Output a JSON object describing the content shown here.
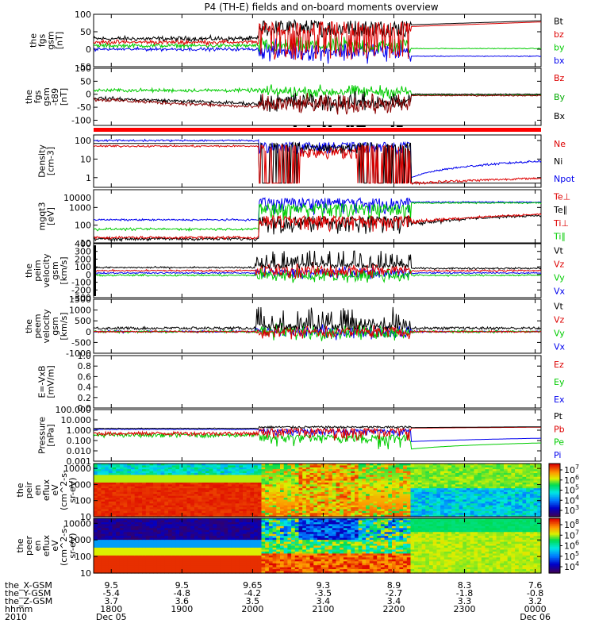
{
  "title": "P4 (TH-E) fields and on-board moments overview",
  "chart_data": [
    {
      "type": "line",
      "panel": "fgs_gsm",
      "ylabel": [
        "the",
        "fgs",
        "gsm",
        "[nT]"
      ],
      "ylim": [
        -50,
        100
      ],
      "yticks": [
        100,
        50,
        0,
        -50
      ],
      "legend": [
        {
          "name": "Bt",
          "color": "#000000"
        },
        {
          "name": "bz",
          "color": "#dd0000"
        },
        {
          "name": "by",
          "color": "#00cc00"
        },
        {
          "name": "bx",
          "color": "#0000ee"
        }
      ]
    },
    {
      "type": "line",
      "panel": "fgs_gsm_t89",
      "ylabel": [
        "the",
        "fgs",
        "gsm",
        "-t89",
        "[nT]"
      ],
      "ylim": [
        -120,
        100
      ],
      "yticks": [
        100,
        50,
        0,
        -50,
        -100
      ],
      "legend": [
        {
          "name": "Bz",
          "color": "#dd0000"
        },
        {
          "name": "By",
          "color": "#00aa00"
        },
        {
          "name": "Bx",
          "color": "#000000"
        }
      ]
    },
    {
      "type": "line",
      "panel": "density",
      "ylabel": [
        "Density",
        "[cm-3]"
      ],
      "scale": "log",
      "ylim": [
        0.3,
        200
      ],
      "yticks": [
        100,
        10,
        1
      ],
      "legend": [
        {
          "name": "Ne",
          "color": "#dd0000"
        },
        {
          "name": "Ni",
          "color": "#000000"
        },
        {
          "name": "Npot",
          "color": "#0000ee"
        }
      ]
    },
    {
      "type": "line",
      "panel": "temperature",
      "ylabel": [
        "mgqt3",
        "[eV]"
      ],
      "scale": "log",
      "ylim": [
        10,
        10000
      ],
      "yticks": [
        1000,
        100,
        10
      ],
      "ytick_labels": [
        "1000",
        "100",
        "10"
      ],
      "extra_tick_label": "10000",
      "legend": [
        {
          "name": "Te⊥",
          "color": "#dd0000"
        },
        {
          "name": "Te∥",
          "color": "#000000"
        },
        {
          "name": "Ti⊥",
          "color": "#dd0000"
        },
        {
          "name": "Ti∥",
          "color": "#00cc00"
        }
      ]
    },
    {
      "type": "line",
      "panel": "peim_velocity",
      "ylabel": [
        "the",
        "peim",
        "velocity",
        "gsm",
        "[km/s]"
      ],
      "ylim": [
        -300,
        400
      ],
      "yticks": [
        400,
        300,
        200,
        100,
        0,
        -100,
        -200,
        -300
      ],
      "legend": [
        {
          "name": "Vt",
          "color": "#000000"
        },
        {
          "name": "Vz",
          "color": "#dd0000"
        },
        {
          "name": "Vy",
          "color": "#00cc00"
        },
        {
          "name": "Vx",
          "color": "#0000ee"
        }
      ]
    },
    {
      "type": "line",
      "panel": "peem_velocity",
      "ylabel": [
        "the",
        "peem",
        "velocity",
        "gsm",
        "[km/s]"
      ],
      "ylim": [
        -1000,
        1500
      ],
      "yticks": [
        1500,
        1000,
        500,
        0,
        -500,
        -1000
      ],
      "legend": [
        {
          "name": "Vt",
          "color": "#000000"
        },
        {
          "name": "Vz",
          "color": "#dd0000"
        },
        {
          "name": "Vy",
          "color": "#00cc00"
        },
        {
          "name": "Vx",
          "color": "#0000ee"
        }
      ]
    },
    {
      "type": "line",
      "panel": "e_vxb",
      "ylabel": [
        "E=-VxB",
        "[mV/m]"
      ],
      "ylim": [
        0.0,
        1.0
      ],
      "yticks": [
        1.0,
        0.8,
        0.6,
        0.4,
        0.2,
        0.0
      ],
      "ytick_labels": [
        "1.0",
        "0.8",
        "0.6",
        "0.4",
        "0.2",
        "0.0"
      ],
      "legend": [
        {
          "name": "Ez",
          "color": "#dd0000"
        },
        {
          "name": "Ey",
          "color": "#00cc00"
        },
        {
          "name": "Ex",
          "color": "#0000ee"
        }
      ]
    },
    {
      "type": "line",
      "panel": "pressure",
      "ylabel": [
        "Pressure",
        "[nPa]"
      ],
      "scale": "log",
      "ylim": [
        0.001,
        100
      ],
      "yticks": [
        100,
        10,
        1,
        0.1,
        0.01,
        0.001
      ],
      "ytick_labels": [
        "100.000",
        "10.000",
        "1.000",
        "0.100",
        "0.010",
        "0.001"
      ],
      "legend": [
        {
          "name": "Pt",
          "color": "#000000"
        },
        {
          "name": "Pb",
          "color": "#dd0000"
        },
        {
          "name": "Pe",
          "color": "#00cc00"
        },
        {
          "name": "Pi",
          "color": "#0000ee"
        }
      ]
    },
    {
      "type": "heatmap",
      "panel": "peir_en_eflux",
      "ylabel": [
        "the",
        "peir",
        "en",
        "eflux",
        "eV",
        "(cm^2-s-",
        "sr-eV)"
      ],
      "scale": "log",
      "ylim": [
        10,
        20000
      ],
      "yticks": [
        10000,
        1000,
        100,
        10
      ],
      "ytick_labels": [
        "10000",
        "1000",
        "100",
        "10"
      ],
      "colorbar_ticks": [
        "10^7",
        "10^6",
        "10^5",
        "10^4",
        "10^3"
      ],
      "colorbar_range": [
        2.5,
        7.5
      ]
    },
    {
      "type": "heatmap",
      "panel": "peer_en_eflux",
      "ylabel": [
        "the",
        "peer",
        "en",
        "eflux",
        "eV",
        "(cm^2-s-",
        "sr-eV)"
      ],
      "scale": "log",
      "ylim": [
        10,
        20000
      ],
      "yticks": [
        10000,
        1000,
        100,
        10
      ],
      "ytick_labels": [
        "10000",
        "1000",
        "100",
        "10"
      ],
      "colorbar_ticks": [
        "10^8",
        "10^7",
        "10^6",
        "10^5",
        "10^4"
      ],
      "colorbar_range": [
        3.5,
        8.5
      ]
    }
  ],
  "x_axis": {
    "tick_hours": [
      "1800",
      "1900",
      "2000",
      "2100",
      "2200",
      "2300",
      "0000"
    ],
    "row_labels": [
      "the_X-GSM",
      "the_Y-GSM",
      "the_Z-GSM",
      "hhmm",
      "2010"
    ],
    "the_X_GSM": [
      "9.5",
      "9.5",
      "9.65",
      "9.3",
      "8.9",
      "8.3",
      "7.6"
    ],
    "the_Y_GSM": [
      "-5.4",
      "-4.8",
      "-4.2",
      "-3.5",
      "-2.7",
      "-1.8",
      "-0.8"
    ],
    "the_Z_GSM": [
      "3.7",
      "3.6",
      "3.5",
      "3.4",
      "3.4",
      "3.3",
      "3.2"
    ],
    "hhmm": [
      "1800",
      "1900",
      "2000",
      "2100",
      "2200",
      "2300",
      "0000"
    ],
    "date_start": "Dec 05",
    "date_end": "Dec 06"
  },
  "colors": {
    "black": "#000000",
    "red": "#dd0000",
    "green": "#00cc00",
    "blue": "#0000ee",
    "dark_red": "#8b0000"
  }
}
